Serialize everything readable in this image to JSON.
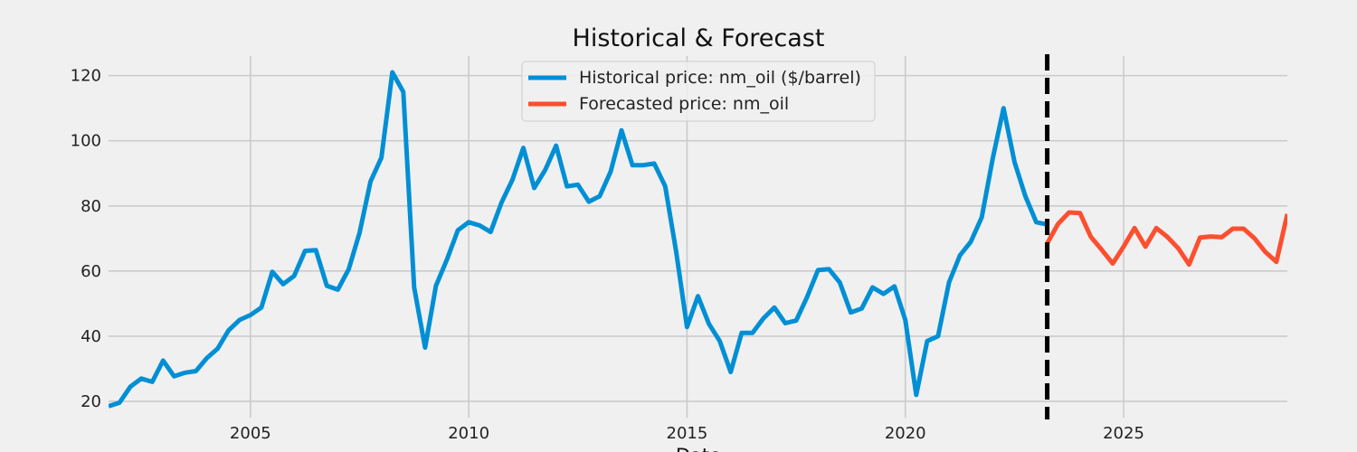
{
  "chart_data": {
    "type": "line",
    "title": "Historical & Forecast",
    "xlabel": "Date",
    "ylabel": "",
    "xlim": [
      2001.75,
      2028.75
    ],
    "ylim": [
      15,
      126
    ],
    "x_ticks": [
      2005,
      2010,
      2015,
      2020,
      2025
    ],
    "x_tick_labels": [
      "2005",
      "2010",
      "2015",
      "2020",
      "2025"
    ],
    "y_ticks": [
      20,
      40,
      60,
      80,
      100,
      120
    ],
    "y_tick_labels": [
      "20",
      "40",
      "60",
      "80",
      "100",
      "120"
    ],
    "grid": true,
    "legend": {
      "placement": "top-center",
      "entries": [
        "Historical price: nm_oil ($/barrel)",
        "Forecasted price: nm_oil"
      ]
    },
    "colors": {
      "historical": "#008fd5",
      "forecast": "#fc4f30",
      "divider": "#000000",
      "background": "#f0f0f0",
      "grid": "#cbcbcb"
    },
    "divider_x": 2023.25,
    "series": [
      {
        "name": "Historical price: nm_oil ($/barrel)",
        "points": [
          [
            2001.75,
            18.5
          ],
          [
            2002.0,
            19.6
          ],
          [
            2002.25,
            24.5
          ],
          [
            2002.5,
            27.0
          ],
          [
            2002.75,
            26.0
          ],
          [
            2003.0,
            32.5
          ],
          [
            2003.25,
            27.7
          ],
          [
            2003.5,
            28.8
          ],
          [
            2003.75,
            29.3
          ],
          [
            2004.0,
            33.3
          ],
          [
            2004.25,
            36.2
          ],
          [
            2004.5,
            41.8
          ],
          [
            2004.75,
            45.0
          ],
          [
            2005.0,
            46.5
          ],
          [
            2005.25,
            48.8
          ],
          [
            2005.5,
            59.8
          ],
          [
            2005.75,
            56.0
          ],
          [
            2006.0,
            58.5
          ],
          [
            2006.25,
            66.2
          ],
          [
            2006.5,
            66.4
          ],
          [
            2006.75,
            55.5
          ],
          [
            2007.0,
            54.3
          ],
          [
            2007.25,
            60.5
          ],
          [
            2007.5,
            71.8
          ],
          [
            2007.75,
            87.5
          ],
          [
            2008.0,
            94.8
          ],
          [
            2008.25,
            121.0
          ],
          [
            2008.5,
            115.0
          ],
          [
            2008.75,
            55.0
          ],
          [
            2009.0,
            36.5
          ],
          [
            2009.25,
            55.5
          ],
          [
            2009.5,
            63.5
          ],
          [
            2009.75,
            72.5
          ],
          [
            2010.0,
            75.0
          ],
          [
            2010.25,
            74.0
          ],
          [
            2010.5,
            72.0
          ],
          [
            2010.75,
            81.0
          ],
          [
            2011.0,
            88.0
          ],
          [
            2011.25,
            97.8
          ],
          [
            2011.5,
            85.5
          ],
          [
            2011.75,
            91.0
          ],
          [
            2012.0,
            98.5
          ],
          [
            2012.25,
            86.0
          ],
          [
            2012.5,
            86.5
          ],
          [
            2012.75,
            81.3
          ],
          [
            2013.0,
            83.0
          ],
          [
            2013.25,
            90.5
          ],
          [
            2013.5,
            103.2
          ],
          [
            2013.75,
            92.5
          ],
          [
            2014.0,
            92.5
          ],
          [
            2014.25,
            93.0
          ],
          [
            2014.5,
            86.0
          ],
          [
            2014.75,
            66.0
          ],
          [
            2015.0,
            42.8
          ],
          [
            2015.25,
            52.3
          ],
          [
            2015.5,
            43.8
          ],
          [
            2015.75,
            38.5
          ],
          [
            2016.0,
            29.0
          ],
          [
            2016.25,
            41.0
          ],
          [
            2016.5,
            41.0
          ],
          [
            2016.75,
            45.5
          ],
          [
            2017.0,
            48.8
          ],
          [
            2017.25,
            44.0
          ],
          [
            2017.5,
            44.8
          ],
          [
            2017.75,
            52.0
          ],
          [
            2018.0,
            60.3
          ],
          [
            2018.25,
            60.6
          ],
          [
            2018.5,
            56.5
          ],
          [
            2018.75,
            47.3
          ],
          [
            2019.0,
            48.5
          ],
          [
            2019.25,
            55.0
          ],
          [
            2019.5,
            53.0
          ],
          [
            2019.75,
            55.3
          ],
          [
            2020.0,
            45.0
          ],
          [
            2020.25,
            22.0
          ],
          [
            2020.5,
            38.5
          ],
          [
            2020.75,
            40.0
          ],
          [
            2021.0,
            56.5
          ],
          [
            2021.25,
            64.8
          ],
          [
            2021.5,
            69.0
          ],
          [
            2021.75,
            76.5
          ],
          [
            2022.0,
            94.5
          ],
          [
            2022.25,
            110.0
          ],
          [
            2022.5,
            93.5
          ],
          [
            2022.75,
            83.0
          ],
          [
            2023.0,
            75.0
          ],
          [
            2023.25,
            74.3
          ]
        ]
      },
      {
        "name": "Forecasted price: nm_oil",
        "points": [
          [
            2023.25,
            68.5
          ],
          [
            2023.5,
            74.5
          ],
          [
            2023.75,
            78.0
          ],
          [
            2024.0,
            77.8
          ],
          [
            2024.25,
            70.5
          ],
          [
            2024.5,
            66.5
          ],
          [
            2024.75,
            62.3
          ],
          [
            2025.0,
            67.5
          ],
          [
            2025.25,
            73.2
          ],
          [
            2025.5,
            67.5
          ],
          [
            2025.75,
            73.2
          ],
          [
            2026.0,
            70.5
          ],
          [
            2026.25,
            67.0
          ],
          [
            2026.5,
            62.0
          ],
          [
            2026.75,
            70.3
          ],
          [
            2027.0,
            70.6
          ],
          [
            2027.25,
            70.4
          ],
          [
            2027.5,
            73.0
          ],
          [
            2027.75,
            73.0
          ],
          [
            2028.0,
            70.0
          ],
          [
            2028.25,
            65.8
          ],
          [
            2028.5,
            62.8
          ],
          [
            2028.75,
            77.5
          ]
        ]
      }
    ]
  }
}
